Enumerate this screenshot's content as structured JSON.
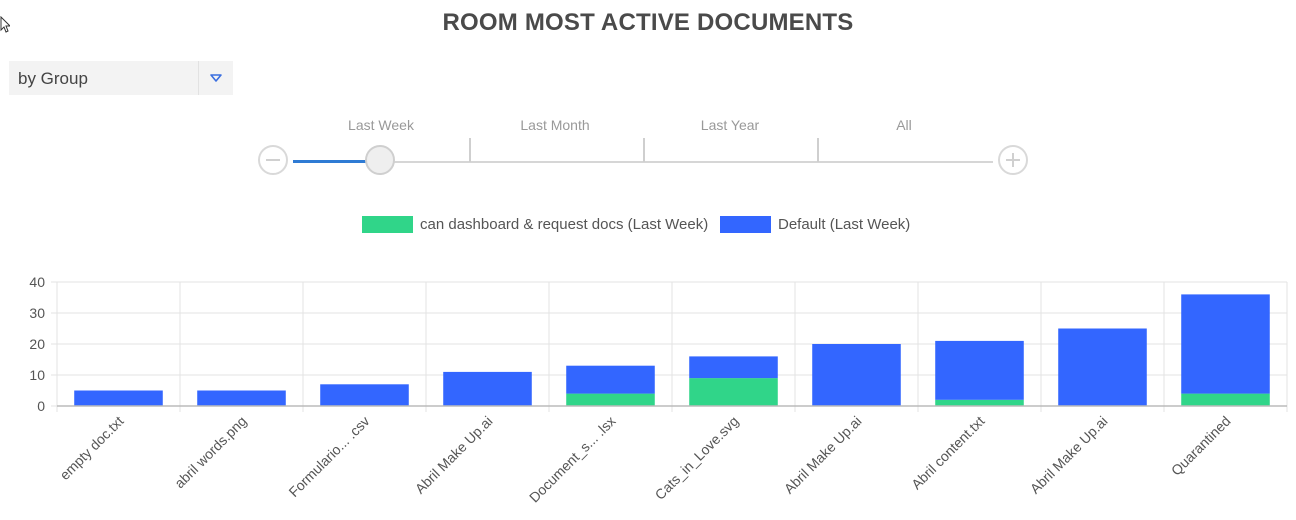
{
  "page": {
    "title": "ROOM MOST ACTIVE DOCUMENTS"
  },
  "group_select": {
    "value": "by Group",
    "icon": "chevron-down-icon"
  },
  "time_range": {
    "labels": [
      "Last Week",
      "Last Month",
      "Last Year",
      "All"
    ],
    "selected": "Last Week",
    "zoom_out_icon": "minus-circle-icon",
    "zoom_in_icon": "plus-circle-icon"
  },
  "colors": {
    "series_green": "#30d589",
    "series_blue": "#3366ff",
    "accent": "#2f7bd4"
  },
  "chart_data": {
    "type": "bar",
    "stacked": true,
    "categories": [
      "empty doc.txt",
      "abril words.png",
      "Formulario... .csv",
      "Abril Make Up.ai",
      "Document_s... .lsx",
      "Cats_in_Love.svg",
      "Abril Make Up.ai",
      "Abril content.txt",
      "Abril Make Up.ai",
      "Quarantined"
    ],
    "series": [
      {
        "name": "can dashboard & request docs (Last Week)",
        "color": "#30d589",
        "values": [
          0,
          0,
          0,
          0,
          4,
          9,
          0,
          2,
          0,
          4
        ]
      },
      {
        "name": "Default (Last Week)",
        "color": "#3366ff",
        "values": [
          5,
          5,
          7,
          11,
          9,
          7,
          20,
          19,
          25,
          32
        ]
      }
    ],
    "yticks": [
      0,
      10,
      20,
      30,
      40
    ],
    "ylim": [
      0,
      40
    ],
    "grid": true,
    "legend": "top-center"
  }
}
